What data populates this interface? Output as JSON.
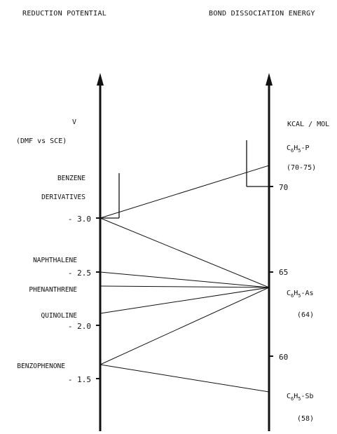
{
  "headers": {
    "left": "REDUCTION POTENTIAL",
    "right": "BOND DISSOCIATION ENERGY"
  },
  "left_axis": {
    "unit": "V",
    "reference": "(DMF vs SCE)",
    "ticks": [
      {
        "label": "- 3.0"
      },
      {
        "label": "- 2.5"
      },
      {
        "label": "- 2.0"
      },
      {
        "label": "- 1.5"
      }
    ],
    "compounds": [
      {
        "line1": "BENZENE",
        "line2": "DERIVATIVES"
      },
      {
        "line1": "NAPHTHALENE"
      },
      {
        "line1": "PHENANTHRENE"
      },
      {
        "line1": "QUINOLINE"
      },
      {
        "line1": "BENZOPHENONE"
      }
    ]
  },
  "right_axis": {
    "unit": "KCAL / MOL",
    "ticks": [
      {
        "label": "70"
      },
      {
        "label": "65"
      },
      {
        "label": "60"
      }
    ],
    "compounds": [
      {
        "base": "C",
        "sub1": "6",
        "mid": "H",
        "sub2": "5",
        "tail": "-P",
        "value": "(70-75)"
      },
      {
        "base": "C",
        "sub1": "6",
        "mid": "H",
        "sub2": "5",
        "tail": "-As",
        "value": "(64)"
      },
      {
        "base": "C",
        "sub1": "6",
        "mid": "H",
        "sub2": "5",
        "tail": "-Sb",
        "value": "(58)"
      }
    ]
  },
  "colors": {
    "ink": "#111111",
    "background": "#ffffff"
  }
}
